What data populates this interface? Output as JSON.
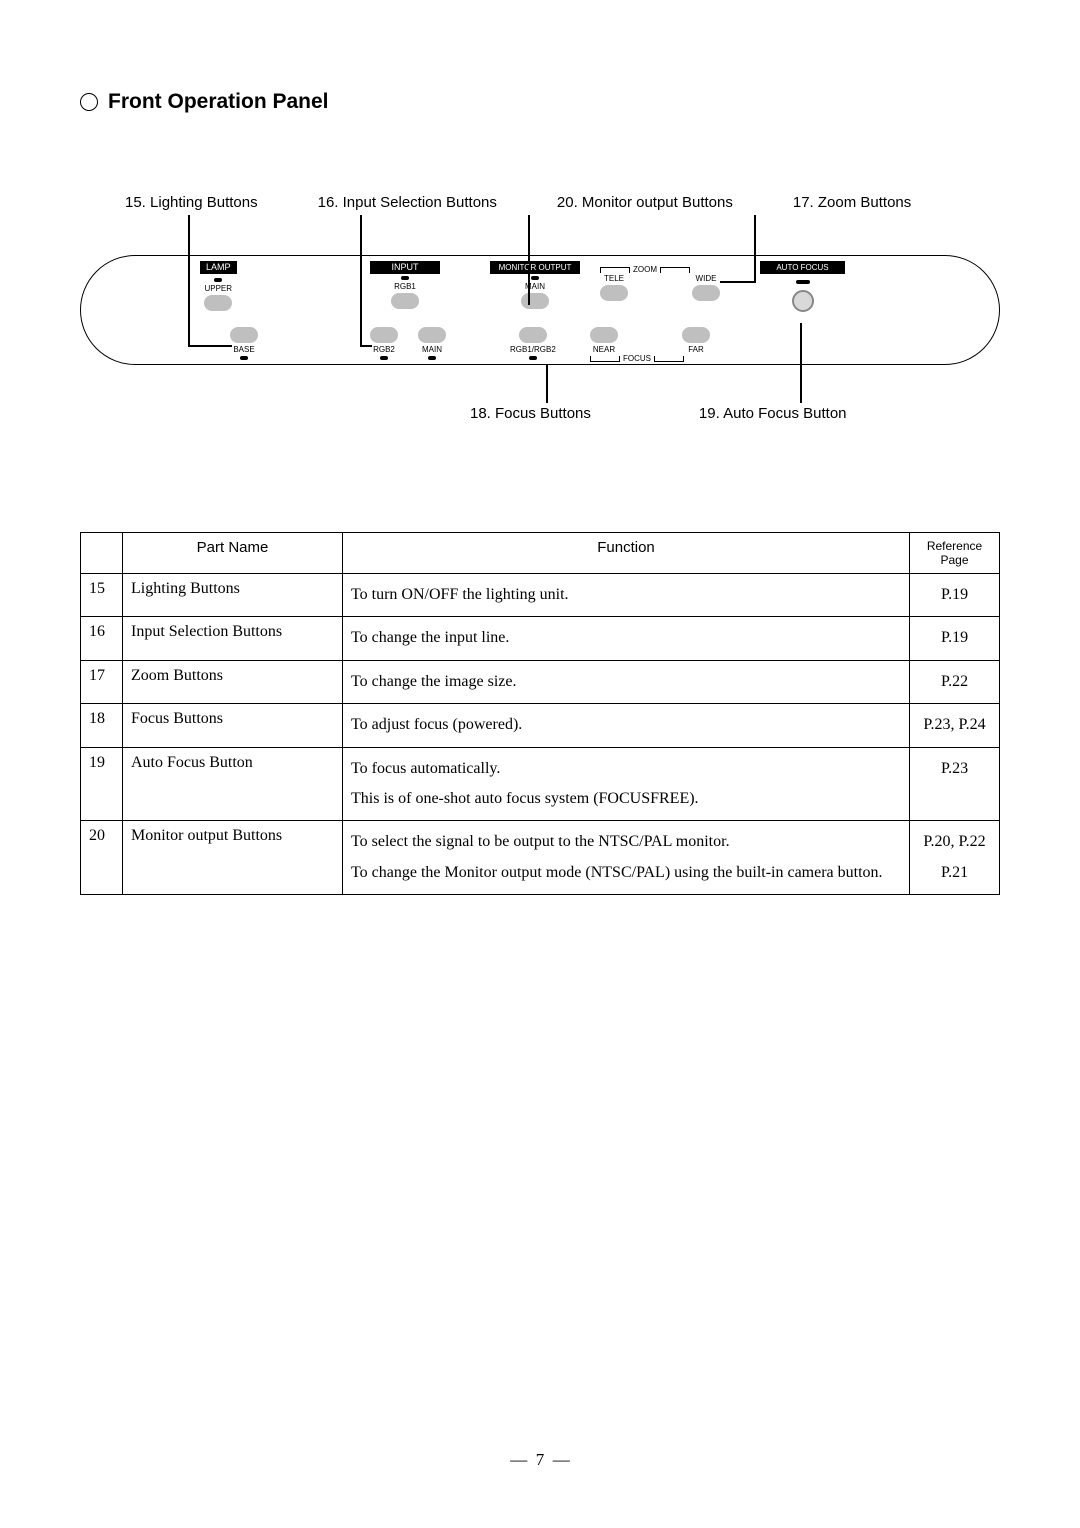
{
  "title": "Front Operation Panel",
  "callouts_top": [
    "15. Lighting Buttons",
    "16. Input Selection Buttons",
    "20. Monitor output Buttons",
    "17. Zoom Buttons"
  ],
  "callouts_bottom": [
    "18. Focus Buttons",
    "19. Auto Focus Button"
  ],
  "panel_labels": {
    "lamp": "LAMP",
    "upper": "UPPER",
    "base": "BASE",
    "input": "INPUT",
    "rgb1": "RGB1",
    "rgb2": "RGB2",
    "main": "MAIN",
    "monitor_output": "MONITOR OUTPUT",
    "main2": "MAIN",
    "rgb1rgb2": "RGB1/RGB2",
    "zoom": "ZOOM",
    "tele": "TELE",
    "wide": "WIDE",
    "focus": "FOCUS",
    "near": "NEAR",
    "far": "FAR",
    "auto_focus": "AUTO FOCUS"
  },
  "table": {
    "headers": {
      "num": "",
      "part": "Part Name",
      "func": "Function",
      "ref": "Reference Page"
    },
    "rows": [
      {
        "num": "15",
        "name": "Lighting Buttons",
        "func": [
          "To turn ON/OFF the lighting unit."
        ],
        "ref": [
          "P.19"
        ]
      },
      {
        "num": "16",
        "name": "Input Selection Buttons",
        "func": [
          "To change the input line."
        ],
        "ref": [
          "P.19"
        ]
      },
      {
        "num": "17",
        "name": "Zoom Buttons",
        "func": [
          "To change the image size."
        ],
        "ref": [
          "P.22"
        ]
      },
      {
        "num": "18",
        "name": "Focus Buttons",
        "func": [
          "To adjust focus (powered)."
        ],
        "ref": [
          "P.23, P.24"
        ]
      },
      {
        "num": "19",
        "name": "Auto Focus Button",
        "func": [
          "To focus automatically.",
          "This is of one-shot auto focus system (FOCUSFREE)."
        ],
        "ref": [
          "P.23"
        ]
      },
      {
        "num": "20",
        "name": "Monitor output Buttons",
        "func": [
          "To select the signal to be output to the NTSC/PAL monitor.",
          "To change the Monitor output mode (NTSC/PAL) using the built-in camera button."
        ],
        "ref": [
          "P.20, P.22",
          "P.21"
        ]
      }
    ]
  },
  "page_number": "7"
}
